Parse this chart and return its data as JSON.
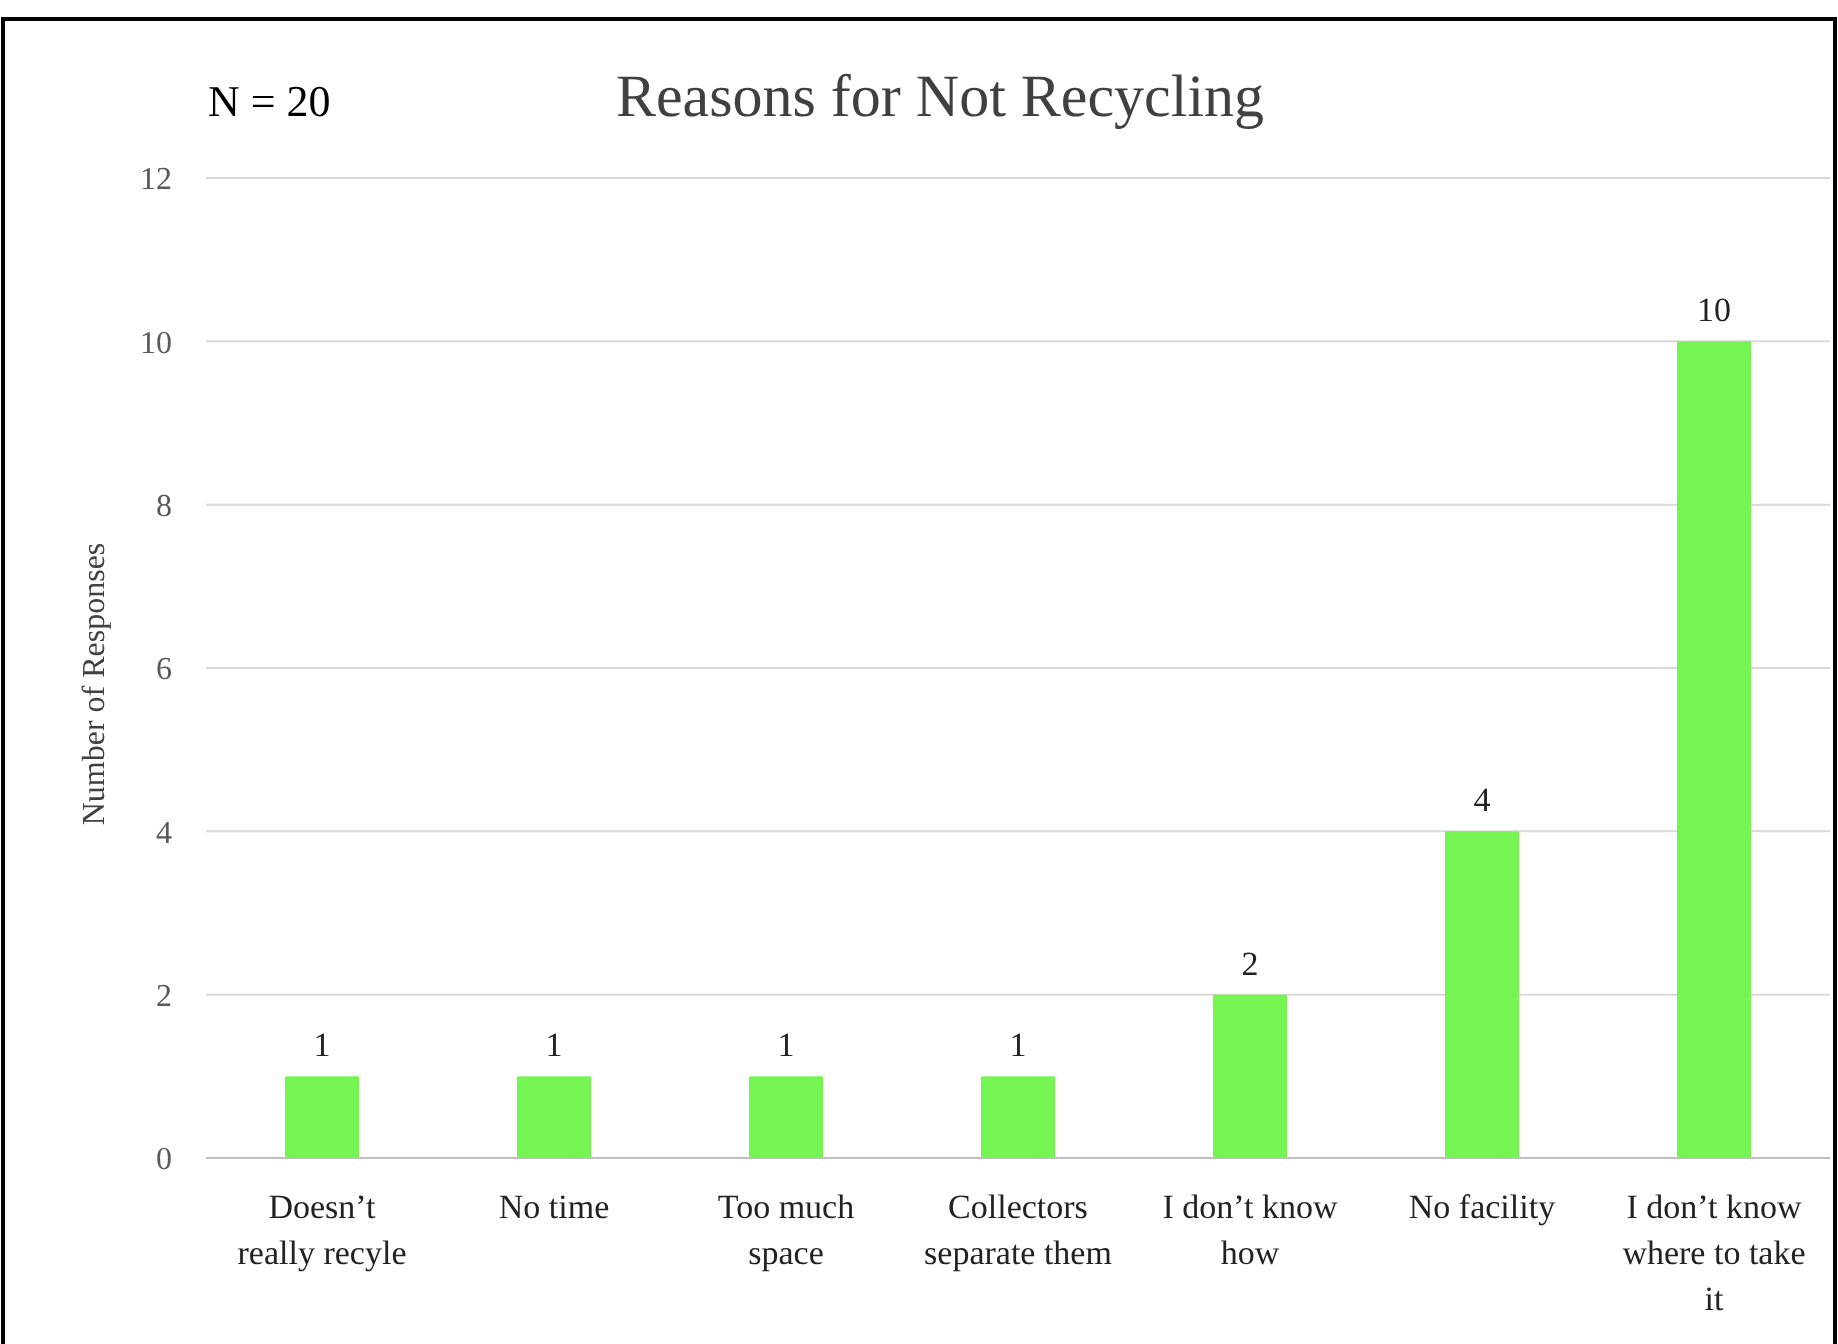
{
  "chart_data": {
    "type": "bar",
    "title": "Reasons for Not Recycling",
    "ylabel": "Number of Responses",
    "annotations": [
      "N = 20"
    ],
    "categories": [
      "Doesn’t really recyle",
      "No time",
      "Too much space",
      "Collectors separate them",
      "I don’t know how",
      "No facility",
      "I don’t know where to take it"
    ],
    "values": [
      1,
      1,
      1,
      1,
      2,
      4,
      10
    ],
    "color": "#76f552",
    "ylim": [
      0,
      12
    ],
    "yticks": [
      0,
      2,
      4,
      6,
      8,
      10,
      12
    ],
    "grid": "y",
    "data_labels": true
  }
}
